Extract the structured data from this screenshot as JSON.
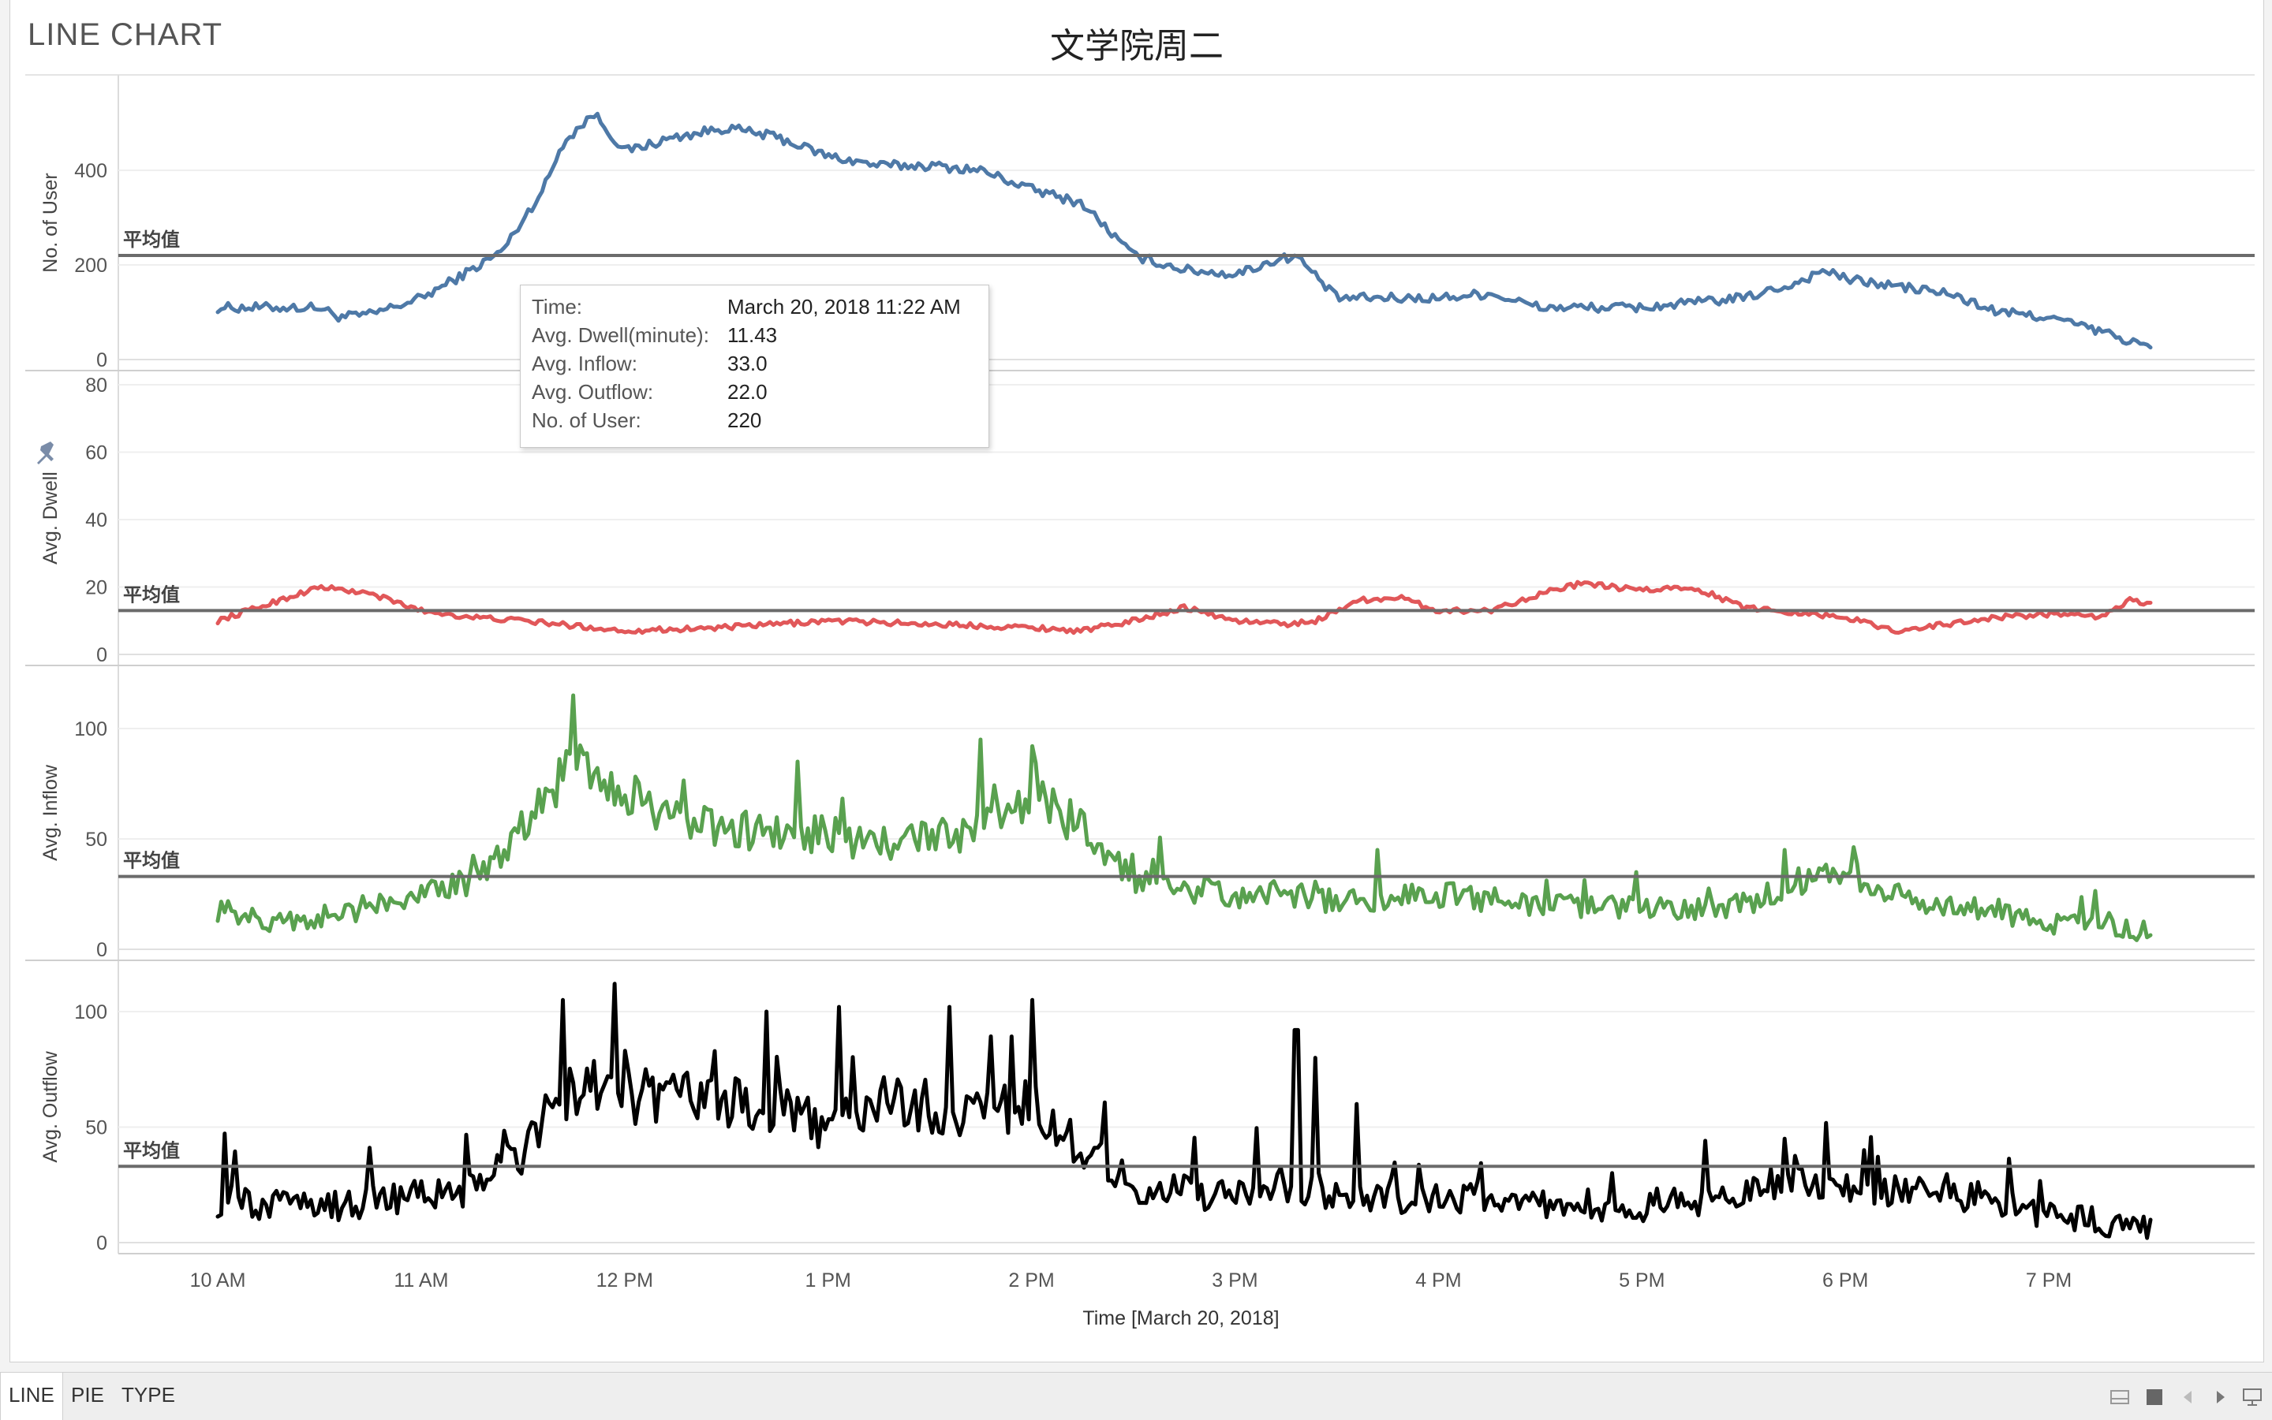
{
  "sheet_title": "LINE CHART",
  "chart_title": "文学院周二",
  "ref_line_label": "平均值",
  "tabs": [
    {
      "label": "LINE",
      "active": true
    },
    {
      "label": "PIE",
      "active": false
    },
    {
      "label": "TYPE",
      "active": false
    }
  ],
  "controls": [
    "sheets-thumbnail-icon",
    "sheet-grid-icon",
    "prev-sheet-icon",
    "next-sheet-icon",
    "presentation-icon"
  ],
  "tooltip": {
    "rows": [
      {
        "label": "Time:",
        "value": "March 20, 2018 11:22 AM"
      },
      {
        "label": "Avg. Dwell(minute):",
        "value": "11.43"
      },
      {
        "label": "Avg. Inflow:",
        "value": "33.0"
      },
      {
        "label": "Avg. Outflow:",
        "value": "22.0"
      },
      {
        "label": "No. of User:",
        "value": "220"
      }
    ]
  },
  "chart_data": {
    "type": "line",
    "xlabel": "Time [March 20, 2018]",
    "x_range": [
      "March 20, 2018 10:00 AM",
      "March 20, 2018 7:30 PM"
    ],
    "x_ticks": [
      "10 AM",
      "11 AM",
      "12 PM",
      "1 PM",
      "2 PM",
      "3 PM",
      "4 PM",
      "5 PM",
      "6 PM",
      "7 PM"
    ],
    "grid": true,
    "colors": {
      "user": "#4e79a7",
      "dwell": "#e15759",
      "inflow": "#59a14f",
      "outflow": "#000000",
      "ref_line": "#6b6b6b"
    },
    "panels": [
      {
        "name": "No. of User",
        "color": "#4e79a7",
        "ylim": [
          0,
          560
        ],
        "ticks": [
          0,
          200,
          400
        ],
        "reference": 220,
        "noise": 10,
        "keyframes": [
          [
            10,
            110
          ],
          [
            10.5,
            110
          ],
          [
            10.6,
            90
          ],
          [
            10.75,
            95
          ],
          [
            11,
            130
          ],
          [
            11.25,
            190
          ],
          [
            11.4,
            230
          ],
          [
            11.6,
            360
          ],
          [
            11.7,
            460
          ],
          [
            11.85,
            520
          ],
          [
            12,
            440
          ],
          [
            12.25,
            470
          ],
          [
            12.5,
            490
          ],
          [
            12.75,
            470
          ],
          [
            13,
            430
          ],
          [
            13.25,
            410
          ],
          [
            13.5,
            410
          ],
          [
            13.75,
            400
          ],
          [
            14,
            360
          ],
          [
            14.25,
            330
          ],
          [
            14.5,
            220
          ],
          [
            14.75,
            190
          ],
          [
            15,
            180
          ],
          [
            15.2,
            210
          ],
          [
            15.3,
            220
          ],
          [
            15.5,
            130
          ],
          [
            16,
            130
          ],
          [
            16.25,
            140
          ],
          [
            16.5,
            110
          ],
          [
            17,
            110
          ],
          [
            17.5,
            130
          ],
          [
            17.75,
            160
          ],
          [
            17.9,
            190
          ],
          [
            18,
            170
          ],
          [
            18.5,
            140
          ],
          [
            18.75,
            100
          ],
          [
            19,
            90
          ],
          [
            19.25,
            60
          ],
          [
            19.5,
            25
          ]
        ],
        "peaks": []
      },
      {
        "name": "Avg. Dwell",
        "color": "#e15759",
        "ylim": [
          0,
          80
        ],
        "ticks": [
          0,
          20,
          40,
          60,
          80
        ],
        "reference": 13,
        "noise": 0.8,
        "keyframes": [
          [
            10,
            10
          ],
          [
            10.25,
            15
          ],
          [
            10.5,
            20
          ],
          [
            10.75,
            18
          ],
          [
            11,
            13
          ],
          [
            11.25,
            11
          ],
          [
            11.5,
            10
          ],
          [
            12,
            7
          ],
          [
            12.5,
            8
          ],
          [
            13,
            10
          ],
          [
            13.5,
            9
          ],
          [
            14,
            8
          ],
          [
            14.25,
            7
          ],
          [
            14.5,
            10
          ],
          [
            14.75,
            14
          ],
          [
            15,
            10
          ],
          [
            15.25,
            9
          ],
          [
            15.4,
            10
          ],
          [
            15.6,
            16
          ],
          [
            15.8,
            17
          ],
          [
            16,
            13
          ],
          [
            16.25,
            13
          ],
          [
            16.5,
            18
          ],
          [
            16.7,
            21
          ],
          [
            17,
            19
          ],
          [
            17.25,
            20
          ],
          [
            17.5,
            14
          ],
          [
            18,
            11
          ],
          [
            18.25,
            7
          ],
          [
            18.75,
            11
          ],
          [
            19,
            12
          ],
          [
            19.25,
            11
          ],
          [
            19.4,
            16
          ],
          [
            19.5,
            15
          ]
        ],
        "peaks": []
      },
      {
        "name": "Avg. Inflow",
        "color": "#59a14f",
        "ylim": [
          0,
          125
        ],
        "ticks": [
          0,
          50,
          100
        ],
        "reference": 33,
        "noise": 6,
        "keyframes": [
          [
            10,
            18
          ],
          [
            10.25,
            12
          ],
          [
            10.5,
            15
          ],
          [
            10.75,
            18
          ],
          [
            11,
            25
          ],
          [
            11.25,
            30
          ],
          [
            11.4,
            45
          ],
          [
            11.6,
            65
          ],
          [
            11.75,
            90
          ],
          [
            12,
            70
          ],
          [
            12.25,
            60
          ],
          [
            12.5,
            55
          ],
          [
            12.75,
            52
          ],
          [
            13,
            52
          ],
          [
            13.25,
            48
          ],
          [
            13.5,
            50
          ],
          [
            13.75,
            55
          ],
          [
            14,
            70
          ],
          [
            14.25,
            55
          ],
          [
            14.5,
            30
          ],
          [
            15,
            25
          ],
          [
            15.25,
            25
          ],
          [
            15.5,
            22
          ],
          [
            16,
            25
          ],
          [
            16.5,
            20
          ],
          [
            17,
            18
          ],
          [
            17.5,
            20
          ],
          [
            17.75,
            30
          ],
          [
            18,
            33
          ],
          [
            18.25,
            25
          ],
          [
            18.5,
            20
          ],
          [
            19,
            12
          ],
          [
            19.5,
            8
          ]
        ],
        "peaks": [
          [
            11.75,
            115
          ],
          [
            12.85,
            85
          ],
          [
            13.75,
            95
          ],
          [
            14,
            92
          ],
          [
            15.7,
            45
          ],
          [
            17.7,
            45
          ]
        ]
      },
      {
        "name": "Avg. Outflow",
        "color": "#000000",
        "ylim": [
          0,
          125
        ],
        "ticks": [
          0,
          50,
          100
        ],
        "reference": 33,
        "noise": 8,
        "keyframes": [
          [
            10,
            18
          ],
          [
            10.5,
            15
          ],
          [
            11,
            20
          ],
          [
            11.25,
            22
          ],
          [
            11.5,
            38
          ],
          [
            11.6,
            55
          ],
          [
            11.75,
            70
          ],
          [
            12,
            65
          ],
          [
            12.5,
            60
          ],
          [
            13,
            50
          ],
          [
            13.25,
            60
          ],
          [
            13.75,
            58
          ],
          [
            14,
            58
          ],
          [
            14.25,
            40
          ],
          [
            14.5,
            25
          ],
          [
            15,
            20
          ],
          [
            15.25,
            25
          ],
          [
            15.5,
            20
          ],
          [
            16,
            20
          ],
          [
            16.5,
            18
          ],
          [
            17,
            15
          ],
          [
            17.5,
            22
          ],
          [
            17.75,
            30
          ],
          [
            18,
            25
          ],
          [
            18.5,
            22
          ],
          [
            19,
            12
          ],
          [
            19.5,
            6
          ]
        ],
        "peaks": [
          [
            11.7,
            105
          ],
          [
            11.95,
            112
          ],
          [
            12.7,
            100
          ],
          [
            13.05,
            102
          ],
          [
            13.6,
            102
          ],
          [
            14,
            105
          ],
          [
            15.3,
            92
          ],
          [
            15.4,
            80
          ],
          [
            15.6,
            60
          ],
          [
            17.7,
            45
          ]
        ]
      }
    ]
  }
}
